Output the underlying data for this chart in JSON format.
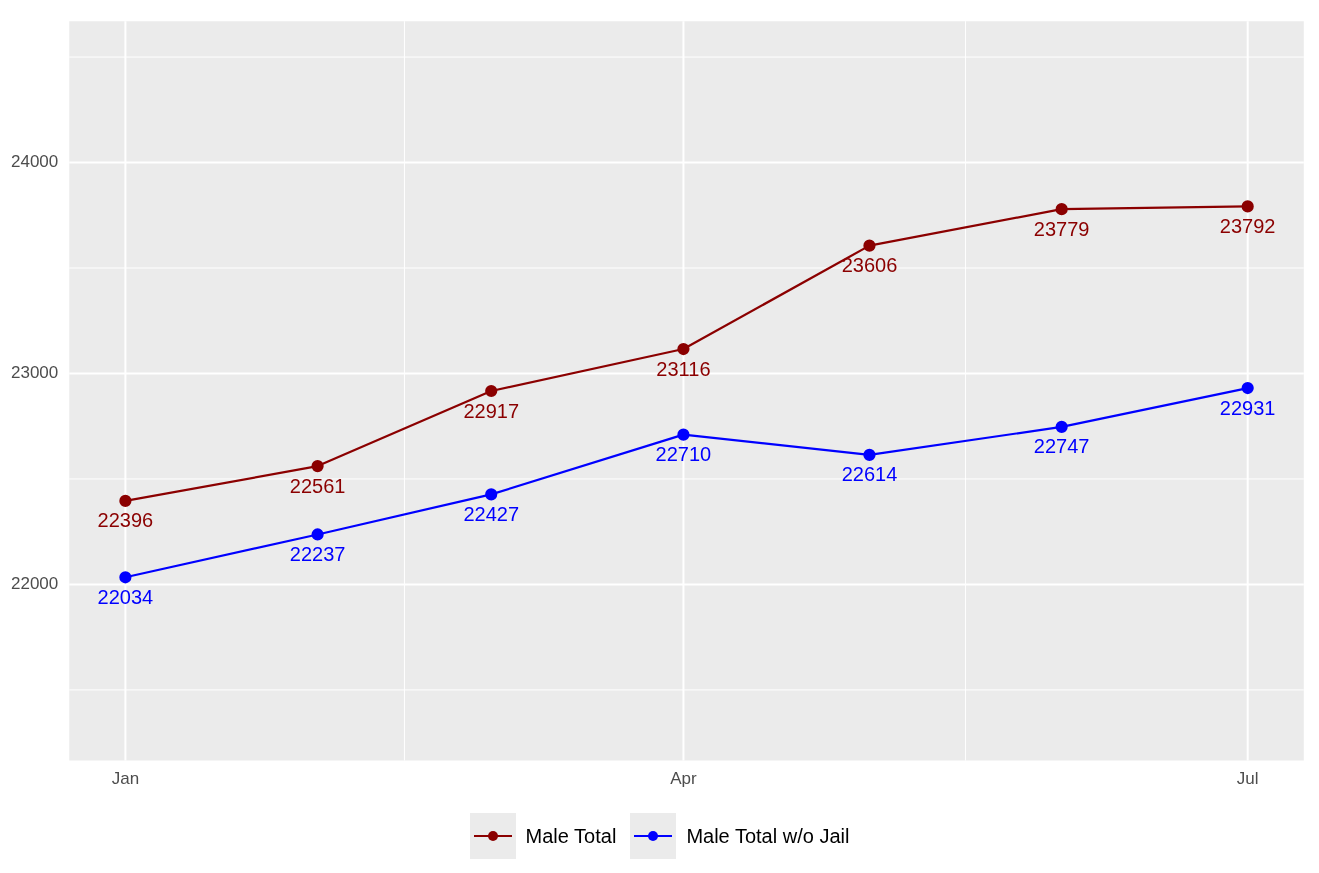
{
  "chart_data": {
    "type": "line",
    "x": [
      "--01-01",
      "--02-01",
      "--03-01",
      "--04-01",
      "--05-01",
      "--06-01",
      "--07-01"
    ],
    "series": [
      {
        "name": "Male Total",
        "color": "#8b0000",
        "values": [
          22396,
          22561,
          22917,
          23116,
          23606,
          23779,
          23792
        ]
      },
      {
        "name": "Male Total w/o Jail",
        "color": "#0000ff",
        "values": [
          22034,
          22237,
          22427,
          22710,
          22614,
          22747,
          22931
        ]
      }
    ],
    "xticks": [
      {
        "value": "--01-01",
        "label": "Jan"
      },
      {
        "value": "--04-01",
        "label": "Apr"
      },
      {
        "value": "--07-01",
        "label": "Jul"
      }
    ],
    "xlim": [
      "--01-01",
      "--07-01"
    ],
    "ylim": [
      21165,
      24670
    ],
    "yticks": [
      {
        "value": 22000,
        "label": "22000"
      },
      {
        "value": 23000,
        "label": "23000"
      },
      {
        "value": 24000,
        "label": "24000"
      }
    ],
    "grid": true,
    "legend": "bottom",
    "marker": "circle",
    "line_style": "solid",
    "data_labels": true
  }
}
